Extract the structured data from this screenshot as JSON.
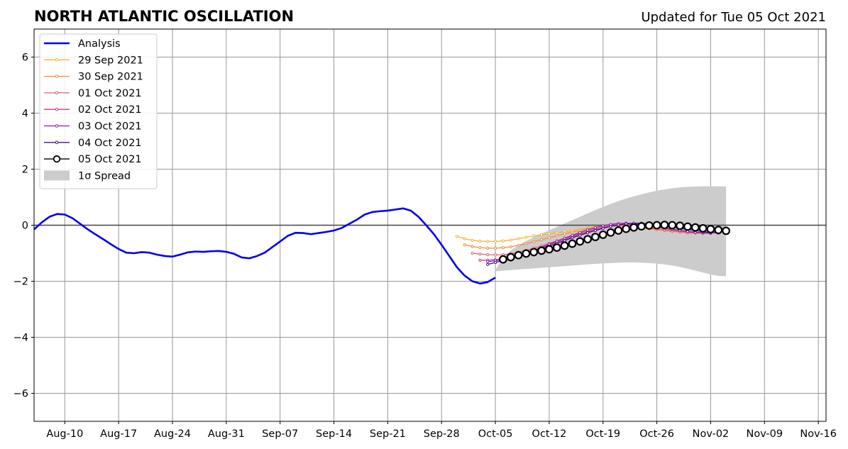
{
  "chart_data": {
    "type": "line",
    "title": "NORTH ATLANTIC OSCILLATION",
    "subtitle": "Updated for Tue 05 Oct 2021",
    "xlabel": "",
    "ylabel": "",
    "xlim": [
      "2021-08-06",
      "2021-11-17"
    ],
    "ylim": [
      -7,
      7
    ],
    "yticks": [
      -6,
      -4,
      -2,
      0,
      2,
      4,
      6
    ],
    "ytick_labels": [
      "−6",
      "−4",
      "−2",
      "0",
      "2",
      "4",
      "6"
    ],
    "xticks": [
      {
        "date": "2021-08-10",
        "label": "Aug-10"
      },
      {
        "date": "2021-08-17",
        "label": "Aug-17"
      },
      {
        "date": "2021-08-24",
        "label": "Aug-24"
      },
      {
        "date": "2021-08-31",
        "label": "Aug-31"
      },
      {
        "date": "2021-09-07",
        "label": "Sep-07"
      },
      {
        "date": "2021-09-14",
        "label": "Sep-14"
      },
      {
        "date": "2021-09-21",
        "label": "Sep-21"
      },
      {
        "date": "2021-09-28",
        "label": "Sep-28"
      },
      {
        "date": "2021-10-05",
        "label": "Oct-05"
      },
      {
        "date": "2021-10-12",
        "label": "Oct-12"
      },
      {
        "date": "2021-10-19",
        "label": "Oct-19"
      },
      {
        "date": "2021-10-26",
        "label": "Oct-26"
      },
      {
        "date": "2021-11-02",
        "label": "Nov-02"
      },
      {
        "date": "2021-11-09",
        "label": "Nov-09"
      },
      {
        "date": "2021-11-16",
        "label": "Nov-16"
      }
    ],
    "grid": true,
    "legend_position": "top-left",
    "analysis": {
      "name": "Analysis",
      "color": "#0000ee",
      "start_date": "2021-08-06",
      "values": [
        -0.15,
        0.1,
        0.3,
        0.4,
        0.38,
        0.25,
        0.05,
        -0.15,
        -0.33,
        -0.5,
        -0.68,
        -0.85,
        -0.98,
        -1.0,
        -0.96,
        -0.98,
        -1.05,
        -1.1,
        -1.12,
        -1.05,
        -0.97,
        -0.94,
        -0.95,
        -0.93,
        -0.92,
        -0.95,
        -1.02,
        -1.15,
        -1.18,
        -1.1,
        -0.98,
        -0.78,
        -0.58,
        -0.38,
        -0.27,
        -0.28,
        -0.32,
        -0.28,
        -0.24,
        -0.19,
        -0.1,
        0.05,
        0.2,
        0.38,
        0.47,
        0.5,
        0.52,
        0.56,
        0.6,
        0.52,
        0.3,
        0.0,
        -0.32,
        -0.7,
        -1.1,
        -1.5,
        -1.8,
        -2.0,
        -2.08,
        -2.03,
        -1.87
      ]
    },
    "forecasts": [
      {
        "name": "29 Sep 2021",
        "color": "#f9b233",
        "start_date": "2021-09-30",
        "values": [
          -0.4,
          -0.48,
          -0.54,
          -0.57,
          -0.58,
          -0.58,
          -0.56,
          -0.53,
          -0.48,
          -0.43,
          -0.38,
          -0.34,
          -0.3,
          -0.27,
          -0.23,
          -0.19,
          -0.15,
          -0.1,
          -0.06,
          -0.03,
          -0.01,
          -0.02,
          -0.04,
          -0.07,
          -0.1,
          -0.12,
          -0.15,
          -0.17,
          -0.2,
          -0.22,
          -0.24
        ]
      },
      {
        "name": "30 Sep 2021",
        "color": "#f08a4b",
        "start_date": "2021-10-01",
        "values": [
          -0.7,
          -0.76,
          -0.8,
          -0.82,
          -0.82,
          -0.8,
          -0.77,
          -0.72,
          -0.66,
          -0.59,
          -0.52,
          -0.45,
          -0.38,
          -0.31,
          -0.25,
          -0.19,
          -0.13,
          -0.08,
          -0.04,
          -0.02,
          -0.02,
          -0.04,
          -0.07,
          -0.1,
          -0.13,
          -0.16,
          -0.19,
          -0.22,
          -0.24,
          -0.26,
          -0.27
        ]
      },
      {
        "name": "01 Oct 2021",
        "color": "#de6270",
        "start_date": "2021-10-02",
        "values": [
          -1.0,
          -1.03,
          -1.05,
          -1.06,
          -1.05,
          -1.02,
          -0.97,
          -0.9,
          -0.82,
          -0.74,
          -0.65,
          -0.56,
          -0.47,
          -0.38,
          -0.3,
          -0.22,
          -0.15,
          -0.09,
          -0.04,
          -0.01,
          0.0,
          -0.02,
          -0.05,
          -0.09,
          -0.13,
          -0.17,
          -0.21,
          -0.24,
          -0.27,
          -0.28,
          -0.29
        ]
      },
      {
        "name": "02 Oct 2021",
        "color": "#b83c8e",
        "start_date": "2021-10-03",
        "values": [
          -1.25,
          -1.25,
          -1.23,
          -1.2,
          -1.15,
          -1.08,
          -1.0,
          -0.91,
          -0.81,
          -0.71,
          -0.61,
          -0.51,
          -0.41,
          -0.32,
          -0.23,
          -0.15,
          -0.08,
          -0.03,
          0.01,
          0.03,
          0.03,
          0.01,
          -0.03,
          -0.07,
          -0.12,
          -0.16,
          -0.2,
          -0.23,
          -0.26,
          -0.28,
          -0.29
        ]
      },
      {
        "name": "03 Oct 2021",
        "color": "#8f1fa3",
        "start_date": "2021-10-04",
        "values": [
          -1.3,
          -1.27,
          -1.22,
          -1.16,
          -1.08,
          -0.99,
          -0.89,
          -0.79,
          -0.68,
          -0.57,
          -0.46,
          -0.36,
          -0.26,
          -0.17,
          -0.09,
          -0.02,
          0.03,
          0.06,
          0.07,
          0.06,
          0.03,
          -0.01,
          -0.05,
          -0.1,
          -0.14,
          -0.18,
          -0.22,
          -0.25,
          -0.27,
          -0.28
        ]
      },
      {
        "name": "04 Oct 2021",
        "color": "#4b0c8f",
        "start_date": "2021-10-04",
        "values": [
          -1.4,
          -1.33,
          -1.26,
          -1.19,
          -1.11,
          -1.03,
          -0.94,
          -0.85,
          -0.75,
          -0.65,
          -0.55,
          -0.45,
          -0.36,
          -0.27,
          -0.19,
          -0.11,
          -0.04,
          0.01,
          0.05,
          0.07,
          0.07,
          0.05,
          0.02,
          -0.02,
          -0.06,
          -0.11,
          -0.15,
          -0.19,
          -0.23,
          -0.26,
          -0.28
        ]
      },
      {
        "name": "05 Oct 2021",
        "color": "#000000",
        "start_date": "2021-10-06",
        "values": [
          -1.22,
          -1.14,
          -1.07,
          -1.01,
          -0.96,
          -0.91,
          -0.86,
          -0.8,
          -0.73,
          -0.66,
          -0.58,
          -0.5,
          -0.42,
          -0.34,
          -0.26,
          -0.19,
          -0.13,
          -0.08,
          -0.04,
          -0.01,
          0.0,
          0.01,
          0.0,
          -0.02,
          -0.05,
          -0.08,
          -0.11,
          -0.14,
          -0.17,
          -0.2
        ]
      }
    ],
    "spread": {
      "name": "1σ Spread",
      "color": "#cccccc",
      "start_date": "2021-10-05",
      "upper": [
        -1.6,
        -1.15,
        -0.9,
        -0.72,
        -0.56,
        -0.42,
        -0.3,
        -0.18,
        -0.06,
        0.06,
        0.18,
        0.3,
        0.42,
        0.54,
        0.65,
        0.76,
        0.86,
        0.95,
        1.03,
        1.1,
        1.17,
        1.23,
        1.28,
        1.32,
        1.35,
        1.37,
        1.38,
        1.39,
        1.39,
        1.39,
        1.38
      ],
      "lower": [
        -1.65,
        -1.62,
        -1.6,
        -1.58,
        -1.56,
        -1.54,
        -1.52,
        -1.5,
        -1.48,
        -1.46,
        -1.44,
        -1.42,
        -1.4,
        -1.38,
        -1.36,
        -1.35,
        -1.34,
        -1.33,
        -1.33,
        -1.34,
        -1.35,
        -1.37,
        -1.4,
        -1.44,
        -1.49,
        -1.55,
        -1.62,
        -1.69,
        -1.76,
        -1.81,
        -1.82
      ]
    }
  }
}
